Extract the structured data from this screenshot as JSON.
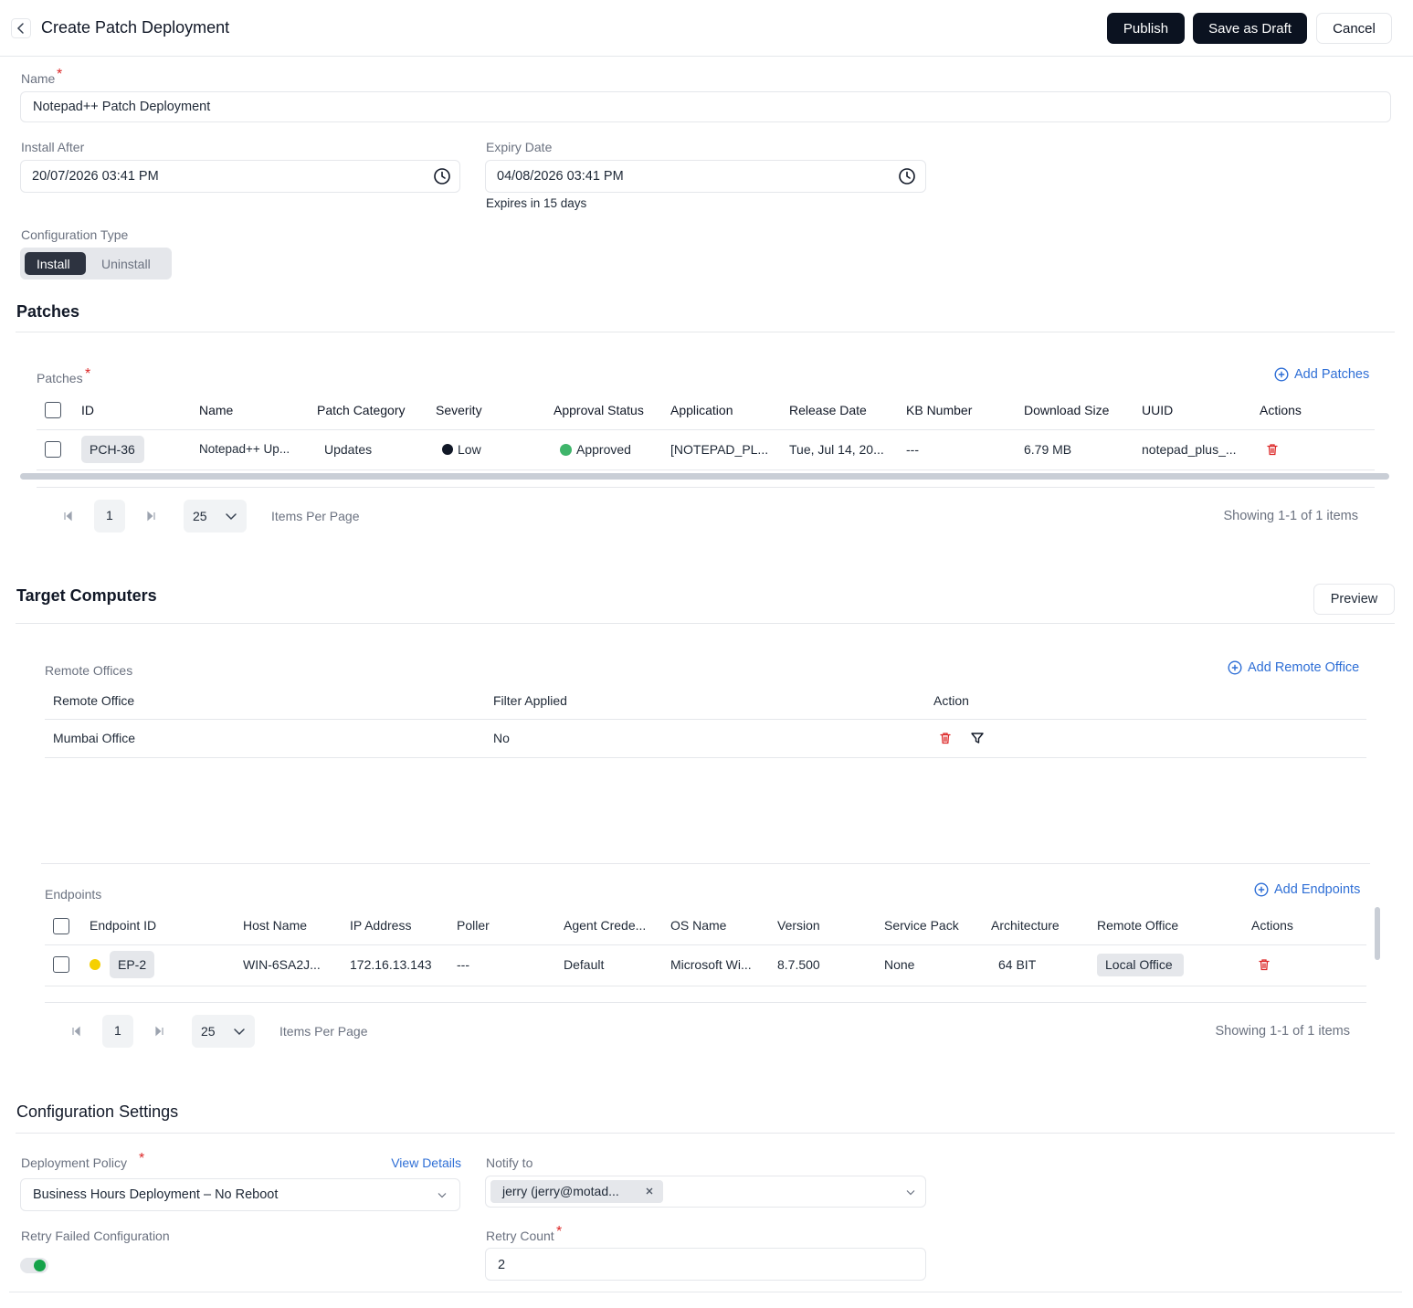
{
  "header": {
    "title": "Create Patch Deployment",
    "publish": "Publish",
    "save_draft": "Save as Draft",
    "cancel": "Cancel"
  },
  "required_marker": "*",
  "general": {
    "name_label": "Name",
    "name_value": "Notepad++ Patch Deployment",
    "install_after_label": "Install After",
    "install_after_value": "20/07/2026 03:41 PM",
    "expiry_label": "Expiry Date",
    "expiry_value": "04/08/2026 03:41 PM",
    "expiry_note": "Expires in 15 days",
    "config_type_label": "Configuration Type",
    "config_options": [
      "Install",
      "Uninstall"
    ]
  },
  "patches": {
    "section_title": "Patches",
    "table_label": "Patches",
    "add_button": "Add Patches",
    "columns": [
      "ID",
      "Name",
      "Patch Category",
      "Severity",
      "Approval Status",
      "Application",
      "Release Date",
      "KB Number",
      "Download Size",
      "UUID",
      "Actions"
    ],
    "rows": [
      [
        "PCH-36",
        "Notepad++ Up...",
        "Updates",
        "Low",
        "Approved",
        "[NOTEPAD_PL...",
        "Tue, Jul 14, 20...",
        "---",
        "6.79 MB",
        "notepad_plus_..."
      ]
    ],
    "pagination": {
      "page": "1",
      "per_page": "25",
      "per_page_label": "Items Per Page",
      "showing": "Showing 1-1 of 1 items"
    }
  },
  "target": {
    "section_title": "Target Computers",
    "preview_button": "Preview",
    "remote_offices": {
      "label": "Remote Offices",
      "add_button": "Add Remote Office",
      "columns": [
        "Remote Office",
        "Filter Applied",
        "Action"
      ],
      "rows": [
        [
          "Mumbai Office",
          "No"
        ]
      ]
    },
    "endpoints": {
      "label": "Endpoints",
      "add_button": "Add Endpoints",
      "columns": [
        "Endpoint ID",
        "Host Name",
        "IP Address",
        "Poller",
        "Agent Crede...",
        "OS Name",
        "Version",
        "Service Pack",
        "Architecture",
        "Remote Office",
        "Actions"
      ],
      "rows": [
        [
          "EP-2",
          "WIN-6SA2J...",
          "172.16.13.143",
          "---",
          "Default",
          "Microsoft Wi...",
          "8.7.500",
          "None",
          "64 BIT",
          "Local Office"
        ]
      ],
      "pagination": {
        "page": "1",
        "per_page": "25",
        "per_page_label": "Items Per Page",
        "showing": "Showing 1-1 of 1 items"
      }
    }
  },
  "config_settings": {
    "section_title": "Configuration Settings",
    "deployment_policy_label": "Deployment Policy",
    "view_details": "View Details",
    "deployment_policy_value": "Business Hours Deployment – No Reboot",
    "notify_label": "Notify to",
    "notify_chip": "jerry (jerry@motad...",
    "retry_failed_label": "Retry Failed Configuration",
    "retry_count_label": "Retry Count",
    "retry_count_value": "2"
  }
}
